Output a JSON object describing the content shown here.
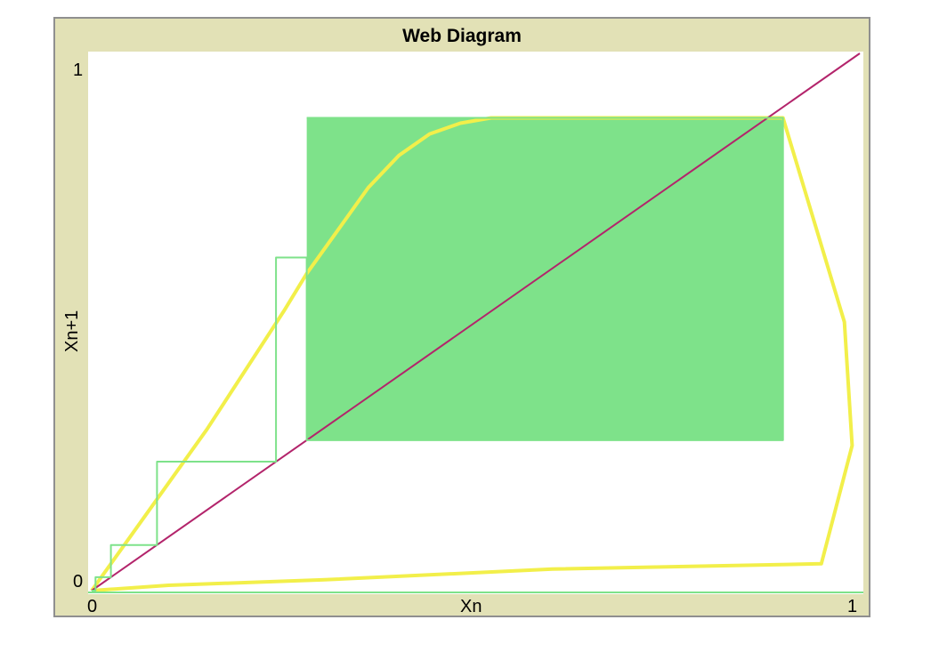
{
  "chart_data": {
    "type": "line",
    "title": "Web Diagram",
    "xlabel": "Xn",
    "ylabel": "Xn+1",
    "xlim": [
      0,
      1
    ],
    "ylim": [
      0,
      1
    ],
    "x_ticks": [
      "0",
      "1"
    ],
    "y_ticks": [
      "0",
      "1"
    ],
    "grid": false,
    "colors": {
      "map_curve": "#f2ef4a",
      "identity_line": "#b3246b",
      "cobweb": "#7ee28a"
    },
    "series": [
      {
        "role": "map-curve",
        "x": [
          0.0,
          0.02,
          0.05,
          0.1,
          0.15,
          0.2,
          0.25,
          0.28,
          0.32,
          0.36,
          0.4,
          0.44,
          0.48,
          0.52,
          0.9,
          0.98,
          0.99,
          0.95,
          0.6,
          0.3,
          0.1,
          0.0
        ],
        "y": [
          0.0,
          0.04,
          0.1,
          0.2,
          0.3,
          0.41,
          0.52,
          0.59,
          0.67,
          0.75,
          0.81,
          0.85,
          0.87,
          0.88,
          0.88,
          0.5,
          0.27,
          0.05,
          0.04,
          0.02,
          0.01,
          0.0
        ]
      },
      {
        "role": "identity-line",
        "x": [
          0,
          1
        ],
        "y": [
          0,
          1
        ]
      },
      {
        "role": "cobweb-path",
        "x": [
          0.0,
          0.005,
          0.005,
          0.025,
          0.025,
          0.085,
          0.085,
          0.24,
          0.24,
          0.28,
          0.28,
          0.9,
          0.9,
          0.28
        ],
        "y": [
          0.0,
          0.0,
          0.025,
          0.025,
          0.085,
          0.085,
          0.24,
          0.24,
          0.62,
          0.62,
          0.28,
          0.28,
          0.88,
          0.88
        ]
      }
    ],
    "filled_region": {
      "x": [
        0.28,
        0.9
      ],
      "y": [
        0.28,
        0.88
      ]
    }
  }
}
